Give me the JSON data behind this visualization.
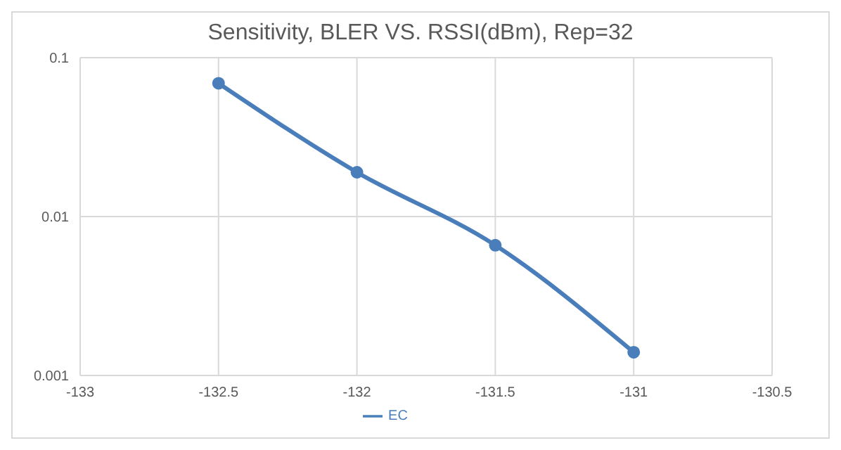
{
  "chart_data": {
    "type": "line",
    "title": "Sensitivity, BLER VS. RSSI(dBm), Rep=32",
    "x": [
      -132.5,
      -132,
      -131.5,
      -131
    ],
    "series": [
      {
        "name": "EC",
        "color": "#4a7ebb",
        "values": [
          0.069,
          0.019,
          0.0066,
          0.0014
        ]
      }
    ],
    "xlim": [
      -133,
      -130.5
    ],
    "xticks": [
      -133,
      -132.5,
      -132,
      -131.5,
      -131,
      -130.5
    ],
    "ylim": [
      0.001,
      0.1
    ],
    "yticks": [
      0.001,
      0.01,
      0.1
    ],
    "log": "y",
    "grid": true,
    "legend": "bottom",
    "marker": "circle",
    "line_style": "solid"
  }
}
